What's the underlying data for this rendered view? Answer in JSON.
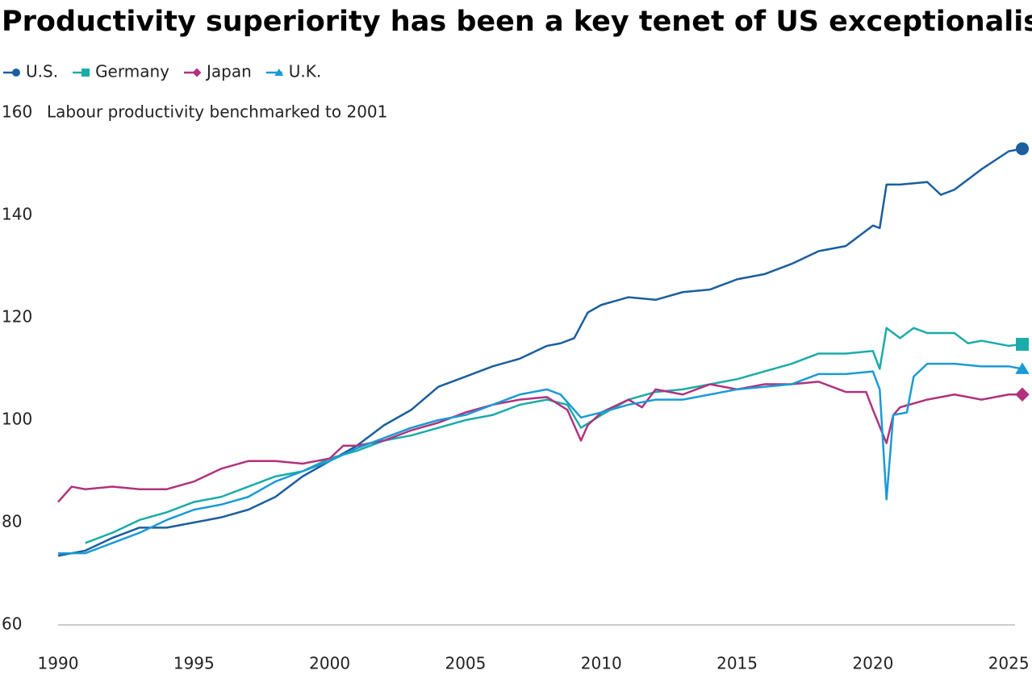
{
  "chart_data": {
    "type": "line",
    "title": "Productivity superiority has been a key tenet of US exceptionalism",
    "y_label": "Labour productivity benchmarked to 2001",
    "xlim": [
      1990,
      2025.5
    ],
    "xticks": [
      1990,
      1995,
      2000,
      2005,
      2010,
      2015,
      2020,
      2025
    ],
    "ylim": [
      60,
      160
    ],
    "yticks": [
      60,
      80,
      100,
      120,
      140,
      160
    ],
    "grid": false,
    "series": [
      {
        "name": "U.S.",
        "color": "#1a5e9e",
        "marker": "circle",
        "x": [
          1990,
          1991,
          1992,
          1993,
          1994,
          1995,
          1996,
          1997,
          1998,
          1999,
          2000,
          2001,
          2002,
          2003,
          2004,
          2005,
          2006,
          2007,
          2008,
          2008.5,
          2009,
          2009.5,
          2010,
          2011,
          2012,
          2013,
          2014,
          2015,
          2016,
          2017,
          2018,
          2019,
          2020,
          2020.25,
          2020.5,
          2021,
          2022,
          2022.5,
          2023,
          2024,
          2025,
          2025.5
        ],
        "values": [
          73.5,
          74.5,
          77,
          79,
          79,
          80,
          81,
          82.5,
          85,
          89,
          92,
          95,
          99,
          102,
          106.5,
          108.5,
          110.5,
          112,
          114.5,
          115,
          116,
          121,
          122.5,
          124,
          123.5,
          125,
          125.5,
          127.5,
          128.5,
          130.5,
          133,
          134,
          138,
          137.5,
          146,
          146,
          146.5,
          144,
          145,
          149,
          152.5,
          153
        ]
      },
      {
        "name": "Germany",
        "color": "#1aaca8",
        "marker": "square",
        "x": [
          1991,
          1992,
          1993,
          1994,
          1995,
          1996,
          1997,
          1998,
          1999,
          2000,
          2001,
          2002,
          2003,
          2004,
          2005,
          2006,
          2007,
          2008,
          2008.75,
          2009.25,
          2010,
          2011,
          2012,
          2013,
          2014,
          2015,
          2016,
          2017,
          2018,
          2019,
          2020,
          2020.25,
          2020.5,
          2021,
          2021.5,
          2022,
          2023,
          2023.5,
          2024,
          2025,
          2025.5
        ],
        "values": [
          76,
          78,
          80.5,
          82,
          84,
          85,
          87,
          89,
          90,
          92.5,
          94,
          96,
          97,
          98.5,
          100,
          101,
          103,
          104,
          103,
          98.5,
          101,
          104,
          105.5,
          106,
          107,
          108,
          109.5,
          111,
          113,
          113,
          113.5,
          110,
          118,
          116,
          118,
          117,
          117,
          115,
          115.5,
          114.5,
          114.8
        ]
      },
      {
        "name": "Japan",
        "color": "#b0327e",
        "marker": "diamond",
        "x": [
          1990,
          1990.5,
          1991,
          1992,
          1993,
          1994,
          1995,
          1996,
          1997,
          1998,
          1999,
          2000,
          2000.5,
          2001,
          2002,
          2003,
          2004,
          2005,
          2006,
          2007,
          2008,
          2008.75,
          2009.25,
          2009.5,
          2010,
          2011,
          2011.5,
          2012,
          2013,
          2014,
          2015,
          2016,
          2017,
          2018,
          2019,
          2019.75,
          2020,
          2020.5,
          2020.75,
          2021,
          2022,
          2023,
          2024,
          2025,
          2025.5
        ],
        "values": [
          84,
          87,
          86.5,
          87,
          86.5,
          86.5,
          88,
          90.5,
          92,
          92,
          91.5,
          92.5,
          95,
          95,
          96,
          98,
          99.5,
          101.5,
          103,
          104,
          104.5,
          102,
          96,
          99,
          101.5,
          104,
          102.5,
          106,
          105,
          107,
          106,
          107,
          107,
          107.5,
          105.5,
          105.5,
          102,
          95.5,
          101,
          102.5,
          104,
          105,
          104,
          105,
          105
        ]
      },
      {
        "name": "U.K.",
        "color": "#1b9ad6",
        "marker": "triangle",
        "x": [
          1990,
          1991,
          1992,
          1993,
          1994,
          1995,
          1996,
          1997,
          1998,
          1999,
          2000,
          2001,
          2002,
          2003,
          2004,
          2005,
          2006,
          2007,
          2008,
          2008.5,
          2009.25,
          2010,
          2011,
          2012,
          2013,
          2014,
          2015,
          2016,
          2017,
          2018,
          2019,
          2020,
          2020.25,
          2020.5,
          2020.75,
          2021.25,
          2021.5,
          2022,
          2023,
          2024,
          2025,
          2025.5
        ],
        "values": [
          74,
          74,
          76,
          78,
          80.5,
          82.5,
          83.5,
          85,
          88,
          90,
          92,
          94.5,
          96.5,
          98.5,
          100,
          101,
          103,
          105,
          106,
          105,
          100.5,
          101.5,
          103,
          104,
          104,
          105,
          106,
          106.5,
          107,
          109,
          109,
          109.5,
          106,
          84.5,
          101,
          101.5,
          108.5,
          111,
          111,
          110.5,
          110.5,
          110
        ]
      }
    ]
  }
}
